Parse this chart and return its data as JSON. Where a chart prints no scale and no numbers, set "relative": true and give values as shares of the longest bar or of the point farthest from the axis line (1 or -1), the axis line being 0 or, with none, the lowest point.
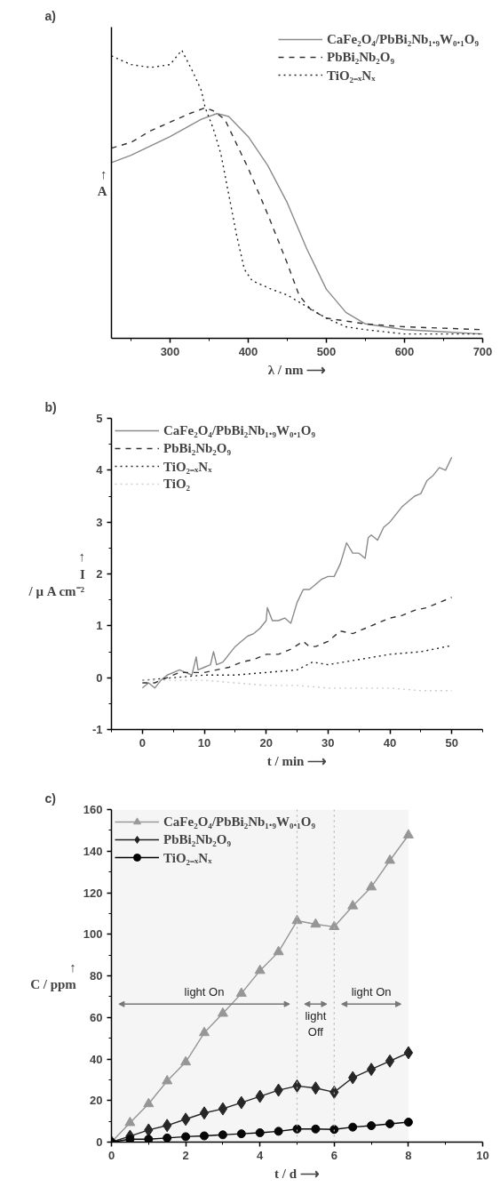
{
  "chart_data": [
    {
      "type": "line",
      "title": "a)",
      "xlabel": "λ / nm ⟶",
      "ylabel": "↑\nA",
      "relative": true,
      "legend": "top right",
      "xlim": [
        225,
        700
      ],
      "xticks": [
        {
          "value": 250,
          "label": null
        },
        300,
        {
          "value": 350,
          "label": null
        },
        400,
        {
          "value": 450,
          "label": null
        },
        500,
        {
          "value": 550,
          "label": null
        },
        600,
        {
          "value": 650,
          "label": null
        },
        700
      ],
      "series": [
        {
          "name": "CaFe₂O₄/PbBi₂Nb₁.₉W₀.₁O₉",
          "color": "#8a8a8a",
          "line_style": "solid",
          "x": [
            225,
            250,
            300,
            340,
            360,
            375,
            400,
            425,
            450,
            475,
            500,
            525,
            550,
            600,
            700
          ],
          "values": [
            0.61,
            0.635,
            0.7,
            0.76,
            0.78,
            0.77,
            0.7,
            0.6,
            0.47,
            0.31,
            0.17,
            0.09,
            0.05,
            0.03,
            0.015
          ]
        },
        {
          "name": "PbBi₂Nb₂O₉",
          "color": "#333333",
          "line_style": "dashed",
          "x": [
            225,
            250,
            275,
            300,
            325,
            345,
            355,
            370,
            400,
            425,
            450,
            465,
            480,
            500,
            550,
            600,
            700
          ],
          "values": [
            0.66,
            0.68,
            0.72,
            0.75,
            0.78,
            0.8,
            0.79,
            0.76,
            0.59,
            0.43,
            0.26,
            0.15,
            0.1,
            0.07,
            0.05,
            0.04,
            0.03
          ]
        },
        {
          "name": "TiO₂₋ₓNₓ",
          "color": "#222222",
          "line_style": "dotted",
          "x": [
            225,
            250,
            275,
            300,
            315,
            330,
            340,
            345,
            355,
            365,
            375,
            385,
            395,
            405,
            430,
            450,
            475,
            500,
            525,
            550,
            600,
            650,
            700
          ],
          "values": [
            0.98,
            0.95,
            0.94,
            0.95,
            1.0,
            0.92,
            0.86,
            0.8,
            0.73,
            0.64,
            0.5,
            0.36,
            0.24,
            0.2,
            0.17,
            0.15,
            0.11,
            0.07,
            0.04,
            0.03,
            0.015,
            0.015,
            0.015
          ]
        }
      ]
    },
    {
      "type": "line",
      "title": "b)",
      "xlabel": "t / min ⟶",
      "ylabel": "↑\nI\n/ μ A cm⁻²",
      "legend": "top left",
      "xlim": [
        -5,
        55
      ],
      "xticks": [
        {
          "value": -5,
          "label": null
        },
        0,
        {
          "value": 5,
          "label": null
        },
        10,
        {
          "value": 15,
          "label": null
        },
        20,
        {
          "value": 25,
          "label": null
        },
        30,
        {
          "value": 35,
          "label": null
        },
        40,
        {
          "value": 45,
          "label": null
        },
        50,
        {
          "value": 55,
          "label": null
        }
      ],
      "ylim": [
        -1,
        5
      ],
      "yticks": [
        -1,
        {
          "value": -0.5,
          "label": null
        },
        0,
        {
          "value": 0.5,
          "label": null
        },
        1,
        {
          "value": 1.5,
          "label": null
        },
        2,
        {
          "value": 2.5,
          "label": null
        },
        3,
        {
          "value": 3.5,
          "label": null
        },
        4,
        {
          "value": 4.5,
          "label": null
        },
        5
      ],
      "series": [
        {
          "name": "CaFe₂O₄/PbBi₂Nb₁.₉W₀.₁O₉",
          "color": "#8a8a8a",
          "line_style": "solid",
          "x": [
            0,
            1,
            2,
            3,
            4,
            5,
            6,
            7,
            8,
            8.7,
            9,
            10,
            11,
            11.5,
            12,
            13,
            14,
            15,
            16,
            17,
            18,
            19,
            20,
            20.2,
            21,
            22,
            23,
            24,
            25,
            26,
            27,
            28,
            29,
            30,
            31,
            32,
            33,
            34,
            35,
            36,
            36.5,
            37,
            38,
            39,
            40,
            41,
            42,
            43,
            44,
            45,
            46,
            47,
            48,
            49,
            50
          ],
          "values": [
            -0.2,
            -0.1,
            -0.2,
            -0.05,
            0.05,
            0.1,
            0.15,
            0.1,
            0.05,
            0.4,
            0.15,
            0.2,
            0.25,
            0.5,
            0.25,
            0.3,
            0.45,
            0.6,
            0.7,
            0.8,
            0.85,
            0.95,
            1.1,
            1.35,
            1.1,
            1.1,
            1.15,
            1.05,
            1.45,
            1.7,
            1.7,
            1.8,
            1.9,
            1.95,
            1.95,
            2.2,
            2.6,
            2.4,
            2.4,
            2.3,
            2.7,
            2.75,
            2.65,
            2.9,
            3.0,
            3.15,
            3.3,
            3.4,
            3.5,
            3.55,
            3.8,
            3.9,
            4.05,
            4.0,
            4.25
          ]
        },
        {
          "name": "PbBi₂Nb₂O₉",
          "color": "#333333",
          "line_style": "dashed",
          "x": [
            0,
            2,
            4,
            6,
            8,
            10,
            12,
            14,
            16,
            18,
            20,
            22,
            24,
            26,
            27,
            28,
            30,
            32,
            34,
            36,
            38,
            40,
            42,
            44,
            46,
            48,
            50
          ],
          "values": [
            -0.1,
            -0.1,
            0.0,
            0.1,
            0.1,
            0.1,
            0.15,
            0.2,
            0.3,
            0.35,
            0.45,
            0.45,
            0.55,
            0.7,
            0.6,
            0.6,
            0.7,
            0.9,
            0.85,
            0.95,
            1.05,
            1.15,
            1.2,
            1.3,
            1.35,
            1.45,
            1.55
          ]
        },
        {
          "name": "TiO₂₋ₓNₓ",
          "color": "#222222",
          "line_style": "dotted",
          "x": [
            0,
            5,
            10,
            15,
            20,
            25,
            27.5,
            30,
            35,
            40,
            45,
            50
          ],
          "values": [
            -0.05,
            0.0,
            0.05,
            0.05,
            0.1,
            0.15,
            0.3,
            0.25,
            0.35,
            0.45,
            0.5,
            0.62
          ]
        },
        {
          "name": "TiO₂",
          "color": "#cccccc",
          "line_style": "dotted",
          "x": [
            0,
            5,
            10,
            15,
            20,
            25,
            30,
            35,
            40,
            45,
            50
          ],
          "values": [
            -0.05,
            -0.05,
            -0.05,
            -0.1,
            -0.15,
            -0.15,
            -0.2,
            -0.2,
            -0.2,
            -0.25,
            -0.25
          ]
        }
      ]
    },
    {
      "type": "line",
      "title": "c)",
      "xlabel": "t / d ⟶",
      "ylabel": "↑\nC / ppm",
      "legend": "top left",
      "xlim": [
        0,
        10
      ],
      "xticks": [
        0,
        {
          "value": 1,
          "label": null
        },
        2,
        {
          "value": 3,
          "label": null
        },
        4,
        {
          "value": 5,
          "label": null
        },
        6,
        {
          "value": 7,
          "label": null
        },
        8,
        {
          "value": 9,
          "label": null
        },
        10
      ],
      "ylim": [
        0,
        160
      ],
      "yticks": [
        0,
        {
          "value": 10,
          "label": null
        },
        20,
        {
          "value": 30,
          "label": null
        },
        40,
        {
          "value": 50,
          "label": null
        },
        60,
        {
          "value": 70,
          "label": null
        },
        80,
        {
          "value": 90,
          "label": null
        },
        100,
        {
          "value": 110,
          "label": null
        },
        120,
        {
          "value": 130,
          "label": null
        },
        140,
        {
          "value": 150,
          "label": null
        },
        160
      ],
      "ref_lines": [
        {
          "axis": "x",
          "value": 5,
          "color": "#bbbbbb",
          "line_style": "dotted"
        },
        {
          "axis": "x",
          "value": 6,
          "color": "#bbbbbb",
          "line_style": "dotted"
        }
      ],
      "bands": [
        {
          "axis": "x",
          "from": 0,
          "to": 5,
          "label": "light On",
          "color": "#777777"
        },
        {
          "axis": "x",
          "from": 5,
          "to": 6,
          "label": "light\nOff",
          "color": "#777777"
        },
        {
          "axis": "x",
          "from": 6,
          "to": 8,
          "label": "light On",
          "color": "#777777"
        }
      ],
      "x": [
        0,
        0.5,
        1,
        1.5,
        2,
        2.5,
        3,
        3.5,
        4,
        4.5,
        5,
        5.5,
        6,
        6.5,
        7,
        7.5,
        8
      ],
      "series": [
        {
          "name": "CaFe₂O₄/PbBi₂Nb₁.₉W₀.₁O₉",
          "color": "#999999",
          "marker": "triangle",
          "line_style": "solid",
          "values": [
            0,
            9.3,
            18.4,
            29.4,
            38.5,
            52.6,
            61.9,
            71.5,
            82.5,
            91.5,
            106.5,
            104.8,
            103.6,
            113.6,
            122.7,
            135.5,
            147.7
          ]
        },
        {
          "name": "PbBi₂Nb₂O₉",
          "color": "#222222",
          "marker": "diamond",
          "line_style": "solid",
          "values": [
            0,
            2.8,
            5.8,
            8,
            11,
            14,
            16,
            19,
            22,
            25,
            27,
            26,
            24,
            31,
            35,
            39,
            43
          ]
        },
        {
          "name": "TiO₂₋ₓNₓ",
          "color": "#000000",
          "marker": "circle",
          "line_style": "solid",
          "values": [
            0,
            1.4,
            1.4,
            2,
            2.6,
            3,
            3.5,
            4,
            4.5,
            5.2,
            6.3,
            6.3,
            6.1,
            7.2,
            7.9,
            8.8,
            9.6
          ]
        }
      ]
    }
  ]
}
